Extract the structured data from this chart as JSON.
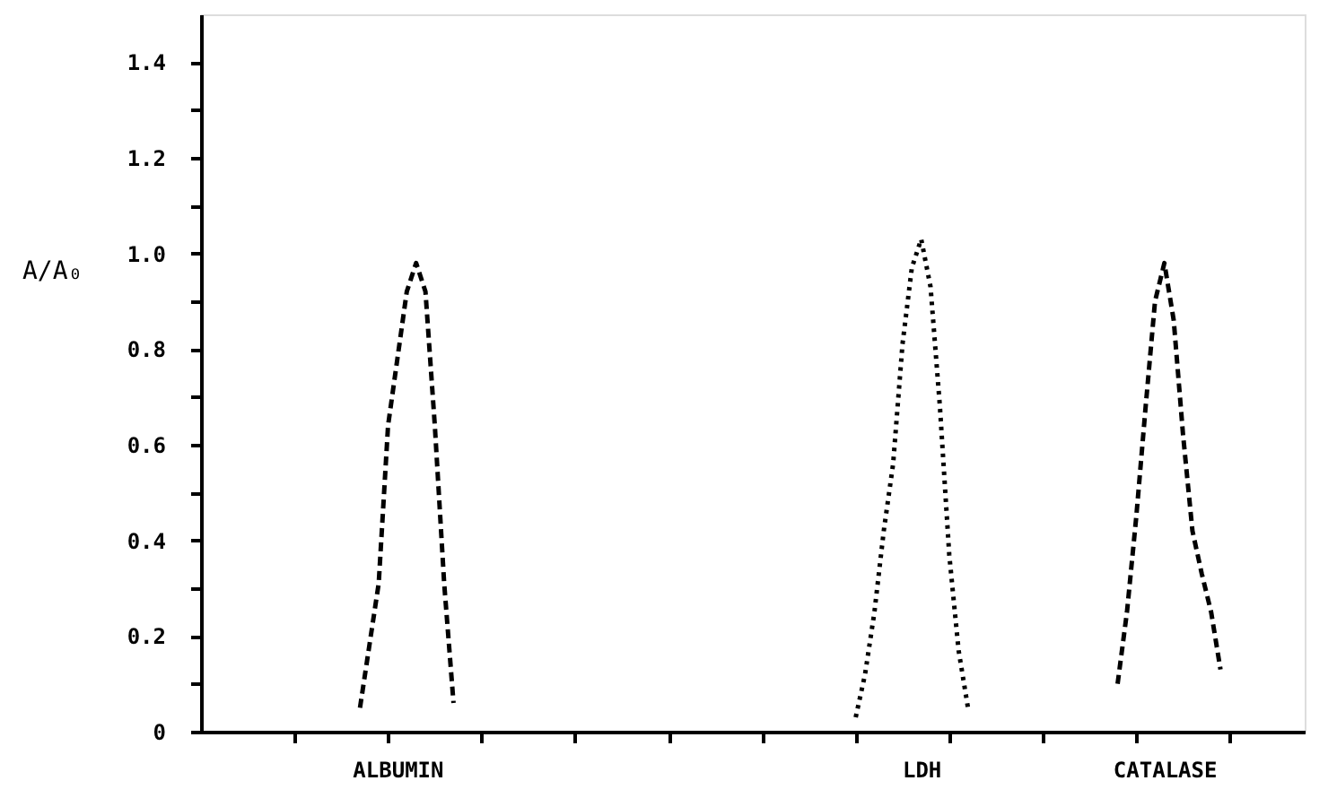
{
  "chart_data": {
    "type": "line",
    "ylabel": "A/A₀",
    "categories": [
      null,
      null,
      null,
      null,
      null,
      null,
      null,
      null,
      null,
      null,
      null,
      null,
      null,
      null,
      null,
      null,
      null,
      null,
      null,
      null,
      null,
      "ALBUMIN",
      null,
      null,
      null,
      null,
      null,
      null,
      null,
      null,
      null,
      null,
      null,
      null,
      null,
      null,
      null,
      null,
      null,
      null,
      null,
      null,
      null,
      null,
      null,
      null,
      null,
      null,
      null,
      null,
      null,
      null,
      null,
      null,
      null,
      null,
      null,
      null,
      null,
      null,
      null,
      null,
      null,
      null,
      null,
      null,
      null,
      null,
      null,
      null,
      null,
      null,
      null,
      null,
      null,
      null,
      null,
      "LDH",
      null,
      null,
      null,
      null,
      null,
      null,
      null,
      null,
      null,
      null,
      null,
      null,
      null,
      null,
      null,
      null,
      null,
      null,
      null,
      null,
      null,
      null,
      null,
      null,
      null,
      "CATALASE",
      null,
      null,
      null,
      null,
      null,
      null,
      null,
      null,
      null,
      null,
      null,
      null,
      null,
      null,
      null
    ],
    "ylim": [
      0,
      1.5
    ],
    "yticks": [
      0,
      {
        "value": 0.1,
        "label": null
      },
      0.2,
      {
        "value": 0.3,
        "label": null
      },
      0.4,
      {
        "value": 0.5,
        "label": null
      },
      0.6,
      {
        "value": 0.7,
        "label": null
      },
      0.8,
      {
        "value": 0.9,
        "label": null
      },
      {
        "value": 1,
        "label": "1.0"
      },
      {
        "value": 1.1,
        "label": null
      },
      1.2,
      {
        "value": 1.3,
        "label": null
      },
      1.4
    ],
    "grid": false,
    "marker": "none",
    "series": [
      {
        "color": "#000000",
        "line_style": "dashed",
        "values": [
          null,
          null,
          null,
          null,
          null,
          null,
          null,
          null,
          null,
          null,
          null,
          null,
          null,
          null,
          null,
          null,
          null,
          0.05,
          0.18,
          0.31,
          0.64,
          0.78,
          0.92,
          0.98,
          0.92,
          0.64,
          0.31,
          0.06,
          null,
          null,
          null,
          null,
          null,
          null,
          null,
          null,
          null,
          null,
          null,
          null,
          null,
          null,
          null,
          null,
          null,
          null,
          null,
          null,
          null,
          null,
          null,
          null,
          null,
          null,
          null,
          null,
          null,
          null,
          null,
          null,
          null,
          null,
          null,
          null,
          null,
          null,
          null,
          null,
          null,
          null,
          null,
          null,
          null,
          null,
          null,
          null,
          null,
          null,
          null,
          null,
          null,
          null,
          null,
          null,
          null,
          null,
          null,
          null,
          null,
          null,
          null,
          null,
          null,
          null,
          null,
          null,
          null,
          null,
          null,
          null,
          null,
          null,
          null,
          null,
          null,
          null,
          null,
          null,
          null,
          null,
          null,
          null,
          null,
          null,
          null,
          null,
          null,
          null,
          null
        ]
      },
      {
        "color": "#000000",
        "line_style": "dotted",
        "values": [
          null,
          null,
          null,
          null,
          null,
          null,
          null,
          null,
          null,
          null,
          null,
          null,
          null,
          null,
          null,
          null,
          null,
          null,
          null,
          null,
          null,
          null,
          null,
          null,
          null,
          null,
          null,
          null,
          null,
          null,
          null,
          null,
          null,
          null,
          null,
          null,
          null,
          null,
          null,
          null,
          null,
          null,
          null,
          null,
          null,
          null,
          null,
          null,
          null,
          null,
          null,
          null,
          null,
          null,
          null,
          null,
          null,
          null,
          null,
          null,
          null,
          null,
          null,
          null,
          null,
          null,
          null,
          null,
          null,
          null,
          0.03,
          0.12,
          0.25,
          0.42,
          0.56,
          0.81,
          0.97,
          1.03,
          0.93,
          0.68,
          0.37,
          0.17,
          0.05,
          null,
          null,
          null,
          null,
          null,
          null,
          null,
          null,
          null,
          null,
          null,
          null,
          null,
          null,
          null,
          null,
          null,
          null,
          null,
          null,
          null,
          null,
          null,
          null,
          null,
          null,
          null,
          null,
          null,
          null,
          null,
          null,
          null,
          null,
          null,
          null
        ]
      },
      {
        "color": "#000000",
        "line_style": "dashed",
        "values": [
          null,
          null,
          null,
          null,
          null,
          null,
          null,
          null,
          null,
          null,
          null,
          null,
          null,
          null,
          null,
          null,
          null,
          null,
          null,
          null,
          null,
          null,
          null,
          null,
          null,
          null,
          null,
          null,
          null,
          null,
          null,
          null,
          null,
          null,
          null,
          null,
          null,
          null,
          null,
          null,
          null,
          null,
          null,
          null,
          null,
          null,
          null,
          null,
          null,
          null,
          null,
          null,
          null,
          null,
          null,
          null,
          null,
          null,
          null,
          null,
          null,
          null,
          null,
          null,
          null,
          null,
          null,
          null,
          null,
          null,
          null,
          null,
          null,
          null,
          null,
          null,
          null,
          null,
          null,
          null,
          null,
          null,
          null,
          null,
          null,
          null,
          null,
          null,
          null,
          null,
          null,
          null,
          null,
          null,
          null,
          null,
          null,
          null,
          0.1,
          0.25,
          0.45,
          0.68,
          0.9,
          0.98,
          0.86,
          0.62,
          0.42,
          0.33,
          0.25,
          0.13,
          null,
          null,
          null,
          null,
          null,
          null,
          null,
          null,
          null
        ]
      }
    ]
  }
}
